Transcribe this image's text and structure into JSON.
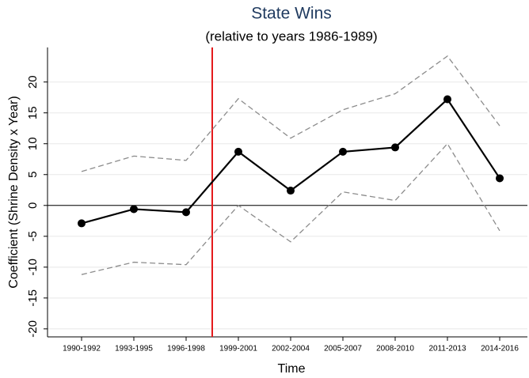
{
  "chart_data": {
    "type": "line",
    "title": "State Wins",
    "subtitle": "(relative to years 1986-1989)",
    "x_label": "Time",
    "y_label": "Coefficient (Shrine Density x Year)",
    "categories": [
      "1990-1992",
      "1993-1995",
      "1996-1998",
      "1999-2001",
      "2002-2004",
      "2005-2007",
      "2008-2010",
      "2011-2013",
      "2014-2016"
    ],
    "series": [
      {
        "color": "#000000",
        "values": [
          -2.9,
          -0.6,
          -1.1,
          8.7,
          2.4,
          8.7,
          9.4,
          17.2,
          4.4
        ],
        "markers": true,
        "dashed": false
      },
      {
        "color": "#8c8c8c",
        "values": [
          5.5,
          8.0,
          7.3,
          17.3,
          10.9,
          15.5,
          18.1,
          24.2,
          12.9
        ],
        "markers": false,
        "dashed": true
      },
      {
        "color": "#8c8c8c",
        "values": [
          -11.2,
          -9.2,
          -9.6,
          0.0,
          -5.9,
          2.2,
          0.8,
          10.0,
          -4.1
        ],
        "markers": false,
        "dashed": true
      }
    ],
    "ylim": [
      -21.3,
      25.6
    ],
    "yticks": [
      -20,
      -15,
      -10,
      -5,
      0,
      5,
      10,
      15,
      20
    ],
    "grid": true,
    "zero_line": 0,
    "reference_line": {
      "x": 2.5,
      "color": "#e41a1c"
    }
  }
}
